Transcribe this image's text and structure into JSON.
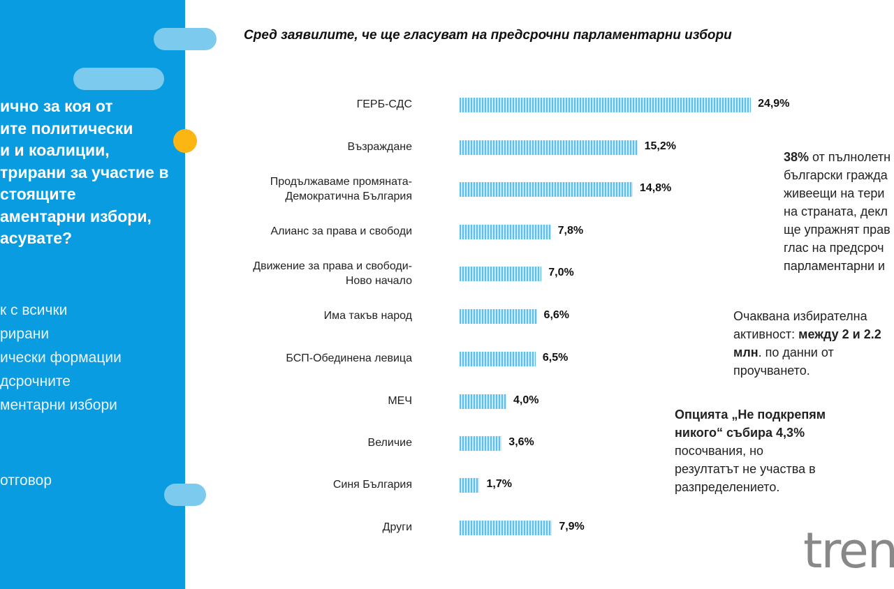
{
  "left_panel": {
    "question": "ично за коя от\nите политически\nи и коалиции,\nтрирани за участие в\nстоящите\nаментарни избори,\nасувате?",
    "note": "к с всички\nрирани\nически формации\nдсрочните\nментарни избори",
    "answer": "отговор",
    "colors": {
      "panel": "#0a9ce0",
      "accent": "#fbb614"
    }
  },
  "chart_data": {
    "type": "bar",
    "orientation": "horizontal",
    "title": "Сред заявилите, че ще гласуват на предсрочни парламентарни избори",
    "categories": [
      "ГЕРБ-СДС",
      "Възраждане",
      "Продължаваме промяната-\nДемократична България",
      "Алианс за права и свободи",
      "Движение за права и свободи-\nНово начало",
      "Има такъв народ",
      "БСП-Обединена левица",
      "МЕЧ",
      "Величие",
      "Синя България",
      "Други"
    ],
    "values": [
      24.9,
      15.2,
      14.8,
      7.8,
      7.0,
      6.6,
      6.5,
      4.0,
      3.6,
      1.7,
      7.9
    ],
    "value_labels": [
      "24,9%",
      "15,2%",
      "14,8%",
      "7,8%",
      "7,0%",
      "6,6%",
      "6,5%",
      "4,0%",
      "3,6%",
      "1,7%",
      "7,9%"
    ],
    "unit": "%",
    "color": "#5cc0ea"
  },
  "side": {
    "p1_bold": "38%",
    "p1": " от пълнолетн\nбългарски гражда\nживеещи на тери\nна страната, декл\nще упражнят прав\nглас на предсроч\nпарламентарни и",
    "p2a": "Очаквана избирателна\nактивност: ",
    "p2_bold": "между 2 и 2.2\nмлн",
    "p2b": ". по данни от\nпроучването.",
    "p3_bold": "Опцията „Не подкрепям\nникого“ събира 4,3%",
    "p3": "\nпосочвания, но\nрезултатът не участва в\nразпределението."
  },
  "logo": "tren"
}
